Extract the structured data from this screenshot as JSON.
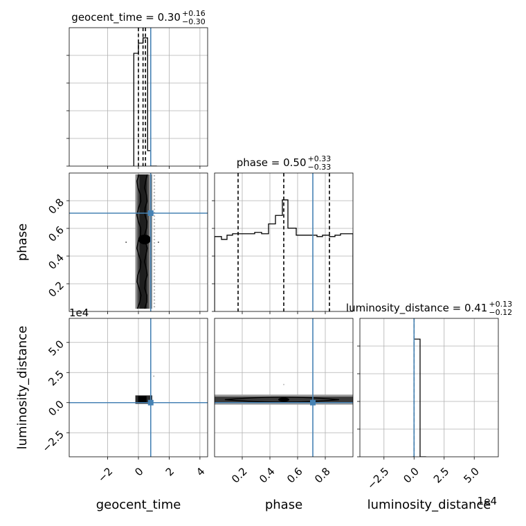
{
  "chart_data": {
    "type": "corner",
    "truth_color": "#4682b4",
    "parameters": [
      {
        "name": "geocent_time",
        "axis_label": "geocent_time",
        "range": [
          -4.5,
          4.5
        ],
        "ticks": [
          -2,
          0,
          2,
          4
        ],
        "tick_labels": [
          "−2",
          "0",
          "2",
          "4"
        ],
        "truth": 0.8
      },
      {
        "name": "phase",
        "axis_label": "phase",
        "range": [
          0.0,
          1.0
        ],
        "ticks": [
          0.2,
          0.4,
          0.6,
          0.8
        ],
        "tick_labels": [
          "0.2",
          "0.4",
          "0.6",
          "0.8"
        ],
        "truth": 0.71
      },
      {
        "name": "luminosity_distance",
        "axis_label": "luminosity_distance",
        "range": [
          -4.5,
          7.0
        ],
        "scale": 10000,
        "offset_text": "1e4",
        "ticks": [
          -2.5,
          0,
          2.5,
          5.0
        ],
        "tick_labels": [
          "−2.5",
          "0.0",
          "2.5",
          "5.0"
        ],
        "truth": 0.0
      }
    ],
    "diagonal": [
      {
        "parameter": "geocent_time",
        "title_main": "geocent_time = 0.30",
        "title_sup": "+0.16",
        "title_sub": "−0.30",
        "quantiles": [
          0.0,
          0.3,
          0.46
        ],
        "hist_edges": [
          -0.3,
          0.0,
          0.3,
          0.6,
          0.8,
          1.2
        ],
        "hist_values": [
          0.44,
          0.48,
          0.5,
          0.06,
          0.0
        ],
        "ymax": 0.54
      },
      {
        "parameter": "phase",
        "title_main": "phase = 0.50",
        "title_sup": "+0.33",
        "title_sub": "−0.33",
        "quantiles": [
          0.17,
          0.5,
          0.83
        ],
        "hist_edges": [
          0.0,
          0.05,
          0.09,
          0.13,
          0.2,
          0.25,
          0.29,
          0.34,
          0.39,
          0.44,
          0.49,
          0.53,
          0.59,
          0.65,
          0.69,
          0.74,
          0.78,
          0.83,
          0.87,
          0.91,
          0.96,
          1.0
        ],
        "hist_values": [
          0.53,
          0.51,
          0.54,
          0.55,
          0.55,
          0.55,
          0.56,
          0.55,
          0.62,
          0.68,
          0.79,
          0.59,
          0.54,
          0.54,
          0.54,
          0.53,
          0.54,
          0.53,
          0.54,
          0.55,
          0.55
        ],
        "ymax": 0.98
      },
      {
        "parameter": "luminosity_distance",
        "title_main": "luminosity_distance = 0.41",
        "title_sup": "+0.13",
        "title_sub": "−0.12",
        "quantiles": [
          0.0
        ],
        "hist_edges": [
          -0.1,
          0.0,
          0.5,
          1.0
        ],
        "hist_values": [
          0.0,
          0.85,
          0.0
        ],
        "ymax": 1.0
      }
    ],
    "offdiagonal": [
      {
        "x": "geocent_time",
        "y": "phase",
        "density_x_range": [
          -0.2,
          0.9
        ],
        "density_y_range": [
          0.02,
          0.99
        ],
        "contour_center": [
          0.4,
          0.52
        ]
      },
      {
        "x": "geocent_time",
        "y": "luminosity_distance",
        "density_x_range": [
          -0.2,
          0.9
        ],
        "density_y_range": [
          -0.1,
          0.6
        ]
      },
      {
        "x": "phase",
        "y": "luminosity_distance",
        "density_x_range": [
          0.0,
          1.0
        ],
        "density_y_range": [
          -0.05,
          0.55
        ]
      }
    ],
    "grid": true
  }
}
